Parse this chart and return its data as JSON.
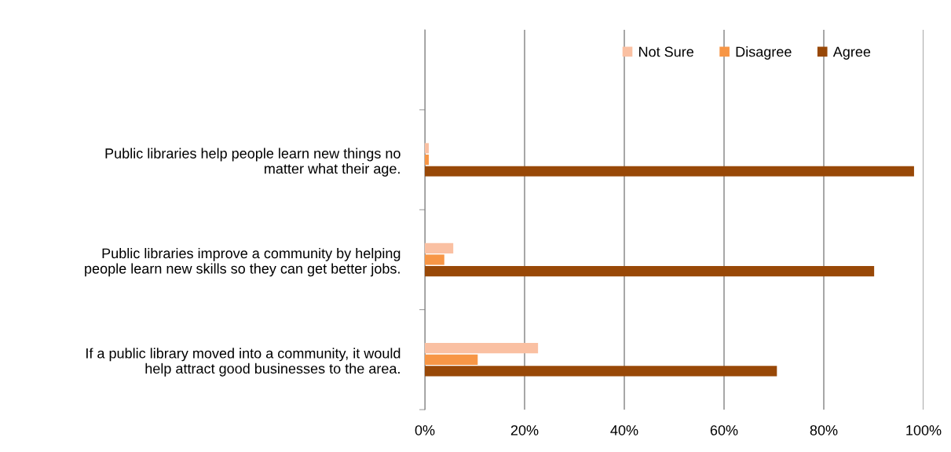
{
  "chart_data": {
    "type": "bar",
    "orientation": "horizontal",
    "categories": [
      "Public libraries help people learn new things no\nmatter what their age.",
      "Public libraries improve a community by helping\npeople learn new skills so they can get better jobs.",
      "If a public library moved into a community, it would\nhelp attract good businesses to the area."
    ],
    "series": [
      {
        "name": "Not Sure",
        "color": "#fac0a2",
        "values": [
          0.8,
          5.7,
          22.7
        ]
      },
      {
        "name": "Disagree",
        "color": "#f79646",
        "values": [
          0.8,
          3.9,
          10.6
        ]
      },
      {
        "name": "Agree",
        "color": "#984807",
        "values": [
          98.1,
          90.1,
          70.6
        ]
      }
    ],
    "xlim": [
      0,
      100
    ],
    "xticks": [
      {
        "value": 0,
        "label": "0%"
      },
      {
        "value": 20,
        "label": "20%"
      },
      {
        "value": 40,
        "label": "40%"
      },
      {
        "value": 60,
        "label": "60%"
      },
      {
        "value": 80,
        "label": "80%"
      },
      {
        "value": 100,
        "label": "100%"
      }
    ],
    "grid": "x",
    "legend": "top right"
  }
}
